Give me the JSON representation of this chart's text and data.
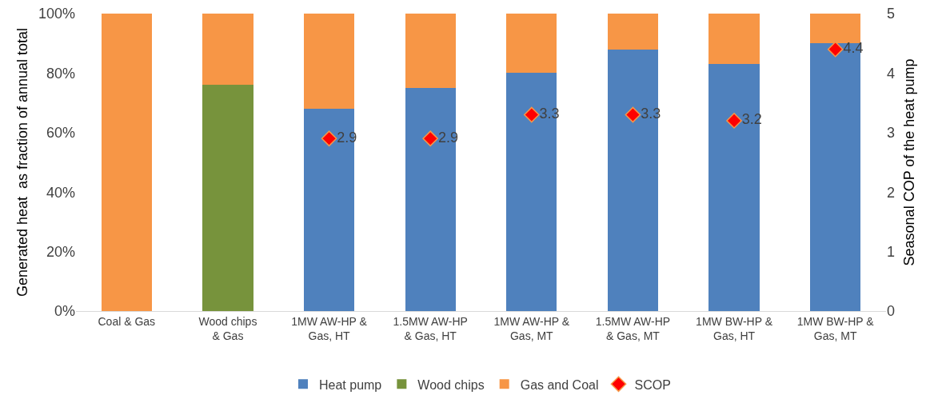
{
  "chart_data": {
    "type": "bar",
    "stacked": true,
    "categories": [
      "Coal & Gas",
      "Wood chips & Gas",
      "1MW AW-HP & Gas, HT",
      "1.5MW AW-HP & Gas, HT",
      "1MW AW-HP & Gas, MT",
      "1.5MW AW-HP & Gas, MT",
      "1MW BW-HP & Gas, HT",
      "1MW BW-HP & Gas, MT"
    ],
    "series": [
      {
        "name": "Heat pump",
        "color": "#4f81bd",
        "values": [
          null,
          null,
          68,
          75,
          80,
          88,
          83,
          90
        ]
      },
      {
        "name": "Wood chips",
        "color": "#77933c",
        "values": [
          null,
          76,
          null,
          null,
          null,
          null,
          null,
          null
        ]
      },
      {
        "name": "Gas and Coal",
        "color": "#f79646",
        "values": [
          100,
          24,
          32,
          25,
          20,
          12,
          17,
          10
        ]
      },
      {
        "name": "SCOP",
        "type": "scatter",
        "axis": "y2",
        "color": "#ff0000",
        "marker": "diamond",
        "values": [
          null,
          null,
          2.9,
          2.9,
          3.3,
          3.3,
          3.2,
          4.4
        ],
        "value_labels": [
          null,
          null,
          "2.9",
          "2.9",
          "3.3",
          "3.3",
          "3.2",
          "4.4"
        ]
      }
    ],
    "ylabel": "Generated heat  as fraction of annual total",
    "y2label": "Seasonal COP of the heat pump",
    "ylim": [
      0,
      100
    ],
    "yticks": [
      {
        "value": 0,
        "label": "0%"
      },
      {
        "value": 20,
        "label": "20%"
      },
      {
        "value": 40,
        "label": "40%"
      },
      {
        "value": 60,
        "label": "60%"
      },
      {
        "value": 80,
        "label": "80%"
      },
      {
        "value": 100,
        "label": "100%"
      }
    ],
    "y2lim": [
      0,
      5
    ],
    "y2ticks": [
      0,
      1,
      2,
      3,
      4,
      5
    ],
    "legend": "bottom"
  }
}
